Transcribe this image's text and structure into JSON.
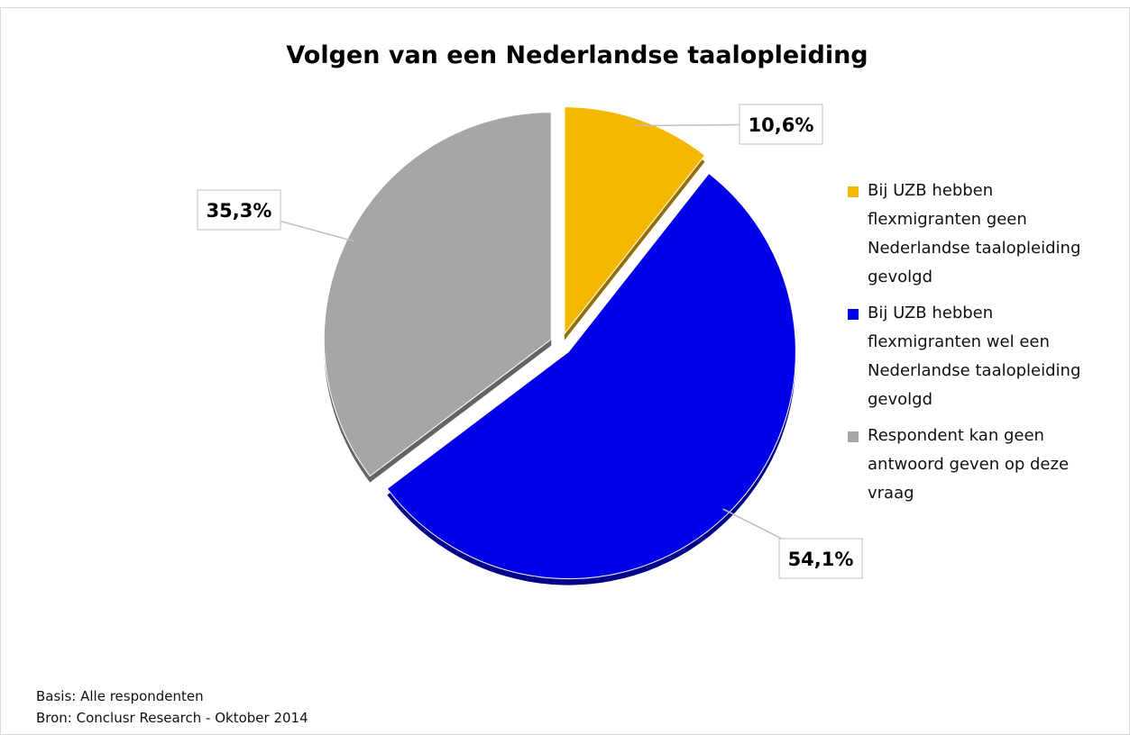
{
  "chart_data": {
    "type": "pie",
    "title": "Volgen van een Nederlandse taalopleiding",
    "categories": [
      "Bij UZB hebben flexmigranten geen Nederlandse taalopleiding gevolgd",
      "Bij UZB hebben flexmigranten wel een Nederlandse taalopleiding gevolgd",
      "Respondent kan geen antwoord geven op deze vraag"
    ],
    "values": [
      10.6,
      54.1,
      35.3
    ],
    "value_labels": [
      "10,6%",
      "54,1%",
      "35,3%"
    ],
    "colors": [
      "#f5b800",
      "#0000e8",
      "#a6a6a6"
    ],
    "notes": [
      "Basis: Alle respondenten",
      "Bron: Conclusr Research - Oktober 2014"
    ]
  }
}
